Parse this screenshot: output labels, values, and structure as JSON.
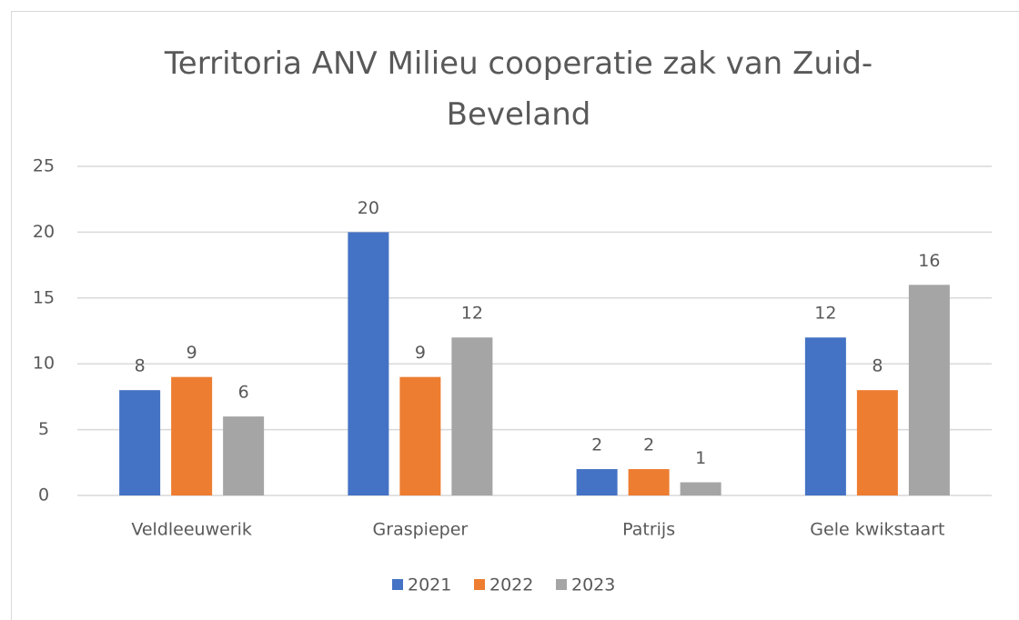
{
  "chart_data": {
    "type": "bar",
    "title": "Territoria ANV Milieu cooperatie zak van Zuid-Beveland",
    "categories": [
      "Veldleeuwerik",
      "Graspieper",
      "Patrijs",
      "Gele kwikstaart"
    ],
    "series": [
      {
        "name": "2021",
        "color": "#4472c4",
        "values": [
          8,
          20,
          2,
          12
        ]
      },
      {
        "name": "2022",
        "color": "#ed7d31",
        "values": [
          9,
          9,
          2,
          8
        ]
      },
      {
        "name": "2023",
        "color": "#a5a5a5",
        "values": [
          6,
          12,
          1,
          16
        ]
      }
    ],
    "ylim": [
      0,
      25
    ],
    "yticks": [
      0,
      5,
      10,
      15,
      20,
      25
    ],
    "grid": true,
    "legend": "bottom"
  }
}
